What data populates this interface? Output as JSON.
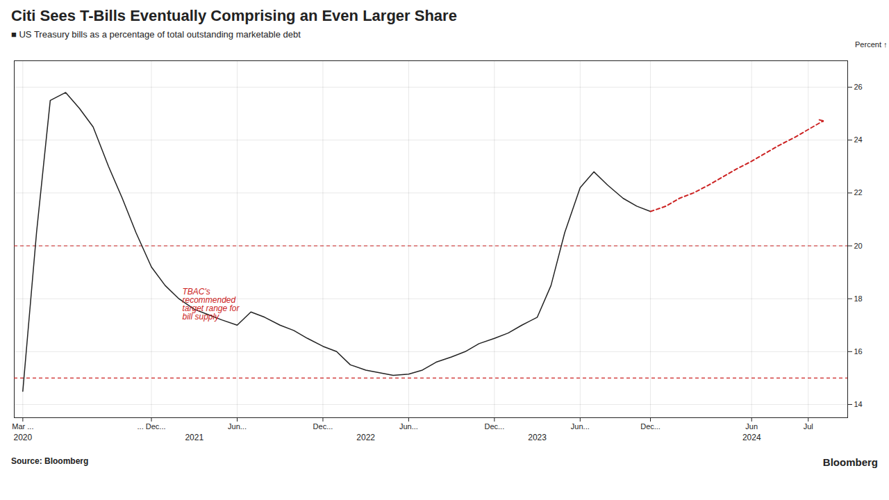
{
  "chart_data": {
    "type": "line",
    "title": "Citi Sees T-Bills Eventually Comprising an Even Larger Share",
    "subtitle": "■ US Treasury bills as a percentage of total outstanding marketable debt",
    "ylabel": "Percent",
    "source": "Source: Bloomberg",
    "watermark": "Bloomberg",
    "grid": true,
    "xlim": [
      2020.12,
      2024.98
    ],
    "xticks": [
      {
        "value": 2020.17,
        "label": "Mar ..."
      },
      {
        "value": 2020.92,
        "label": "... Dec..."
      },
      {
        "value": 2021.42,
        "label": "Jun..."
      },
      {
        "value": 2021.92,
        "label": "Dec..."
      },
      {
        "value": 2022.42,
        "label": "Jun..."
      },
      {
        "value": 2022.92,
        "label": "Dec..."
      },
      {
        "value": 2023.42,
        "label": "Jun..."
      },
      {
        "value": 2023.83,
        "label": "Dec..."
      },
      {
        "value": 2024.42,
        "label": "Jun"
      },
      {
        "value": 2024.75,
        "label": "Jul"
      }
    ],
    "x2ticks": [
      {
        "value": 2020.17,
        "label": "2020"
      },
      {
        "value": 2021.17,
        "label": "2021"
      },
      {
        "value": 2022.17,
        "label": "2022"
      },
      {
        "value": 2023.17,
        "label": "2023"
      },
      {
        "value": 2024.42,
        "label": "2024"
      }
    ],
    "ylim": [
      13.5,
      27
    ],
    "yticks": [
      14,
      16,
      18,
      20,
      22,
      24,
      26
    ],
    "series": [
      {
        "x": [
          2020.17,
          2020.25,
          2020.33,
          2020.42,
          2020.5,
          2020.58,
          2020.67,
          2020.75,
          2020.83,
          2020.92,
          2021.0,
          2021.08,
          2021.17,
          2021.25,
          2021.33,
          2021.42,
          2021.5,
          2021.58,
          2021.67,
          2021.75,
          2021.83,
          2021.92,
          2022.0,
          2022.08,
          2022.17,
          2022.25,
          2022.33,
          2022.42,
          2022.5,
          2022.58,
          2022.67,
          2022.75,
          2022.83,
          2022.92,
          2023.0,
          2023.08,
          2023.17,
          2023.25,
          2023.33,
          2023.42,
          2023.5,
          2023.58,
          2023.67,
          2023.75,
          2023.83
        ],
        "values": [
          14.5,
          20.5,
          25.5,
          25.8,
          25.2,
          24.5,
          23.0,
          21.8,
          20.5,
          19.2,
          18.5,
          18.0,
          17.6,
          17.4,
          17.2,
          17.0,
          17.5,
          17.3,
          17.0,
          16.8,
          16.5,
          16.2,
          16.0,
          15.5,
          15.3,
          15.2,
          15.1,
          15.15,
          15.3,
          15.6,
          15.8,
          16.0,
          16.3,
          16.5,
          16.7,
          17.0,
          17.3,
          18.5,
          20.5,
          22.2,
          22.8,
          22.3,
          21.8,
          21.5,
          21.3
        ],
        "line_style": "solid"
      },
      {
        "x": [
          2023.83,
          2023.92,
          2024.0,
          2024.08,
          2024.17,
          2024.25,
          2024.33,
          2024.42,
          2024.5,
          2024.58,
          2024.67,
          2024.75,
          2024.83
        ],
        "values": [
          21.3,
          21.5,
          21.8,
          22.0,
          22.3,
          22.6,
          22.9,
          23.2,
          23.5,
          23.8,
          24.1,
          24.4,
          24.7
        ],
        "color": "#cc2222",
        "line_style": "dashed",
        "marker": "arrow"
      }
    ],
    "reference_lines": {
      "values": [
        20,
        15
      ],
      "color": "#cc2222",
      "line_style": "dashed"
    },
    "annotations": [
      {
        "text": "TBAC's\nrecommended\ntarget range for\nbill supply",
        "x": 2021.1,
        "y": 17.8,
        "color": "#cc2222"
      }
    ]
  }
}
